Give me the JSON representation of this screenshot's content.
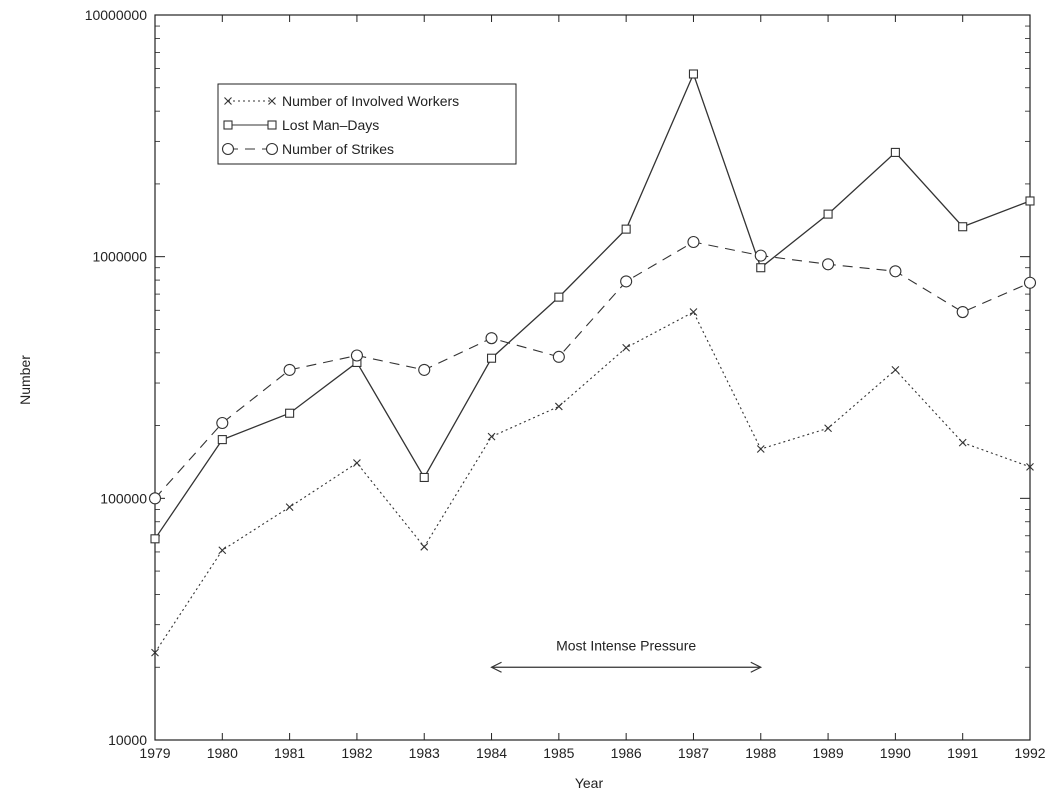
{
  "chart_data": {
    "type": "line",
    "title": "",
    "xlabel": "Year",
    "ylabel": "Number",
    "y_scale": "log",
    "ylim": [
      10000,
      10000000
    ],
    "xlim": [
      1979,
      1992
    ],
    "grid": false,
    "legend_position": "top-left",
    "x": [
      1979,
      1980,
      1981,
      1982,
      1983,
      1984,
      1985,
      1986,
      1987,
      1988,
      1989,
      1990,
      1991,
      1992
    ],
    "x_tick_labels": [
      "1979",
      "1980",
      "1981",
      "1982",
      "1983",
      "1984",
      "1985",
      "1986",
      "1987",
      "1988",
      "1989",
      "1990",
      "1991",
      "1992"
    ],
    "y_tick_labels": [
      "10000",
      "100000",
      "1000000",
      "10000000"
    ],
    "y_ticks": [
      10000,
      100000,
      1000000,
      10000000
    ],
    "series": [
      {
        "name": "Number of Involved Workers",
        "line_style": "dotted",
        "marker": "x",
        "values": [
          23000,
          61000,
          92000,
          140000,
          63000,
          180000,
          240000,
          420000,
          590000,
          160000,
          195000,
          340000,
          170000,
          135000
        ]
      },
      {
        "name": "Lost Man–Days",
        "line_style": "solid",
        "marker": "square",
        "values": [
          68000,
          175000,
          225000,
          365000,
          122000,
          380000,
          680000,
          1300000,
          5700000,
          900000,
          1500000,
          2700000,
          1330000,
          1700000
        ]
      },
      {
        "name": "Number of Strikes",
        "line_style": "dashed",
        "marker": "circle",
        "values": [
          100000,
          205000,
          340000,
          390000,
          340000,
          460000,
          385000,
          790000,
          1150000,
          1010000,
          930000,
          870000,
          590000,
          780000
        ]
      }
    ],
    "annotations": [
      {
        "text": "Most Intense Pressure",
        "x_start": 1984,
        "x_end": 1988,
        "y": 20000,
        "arrow": "double"
      }
    ],
    "colors": {
      "line": "#333333",
      "frame": "#222222",
      "background": "#ffffff"
    }
  }
}
